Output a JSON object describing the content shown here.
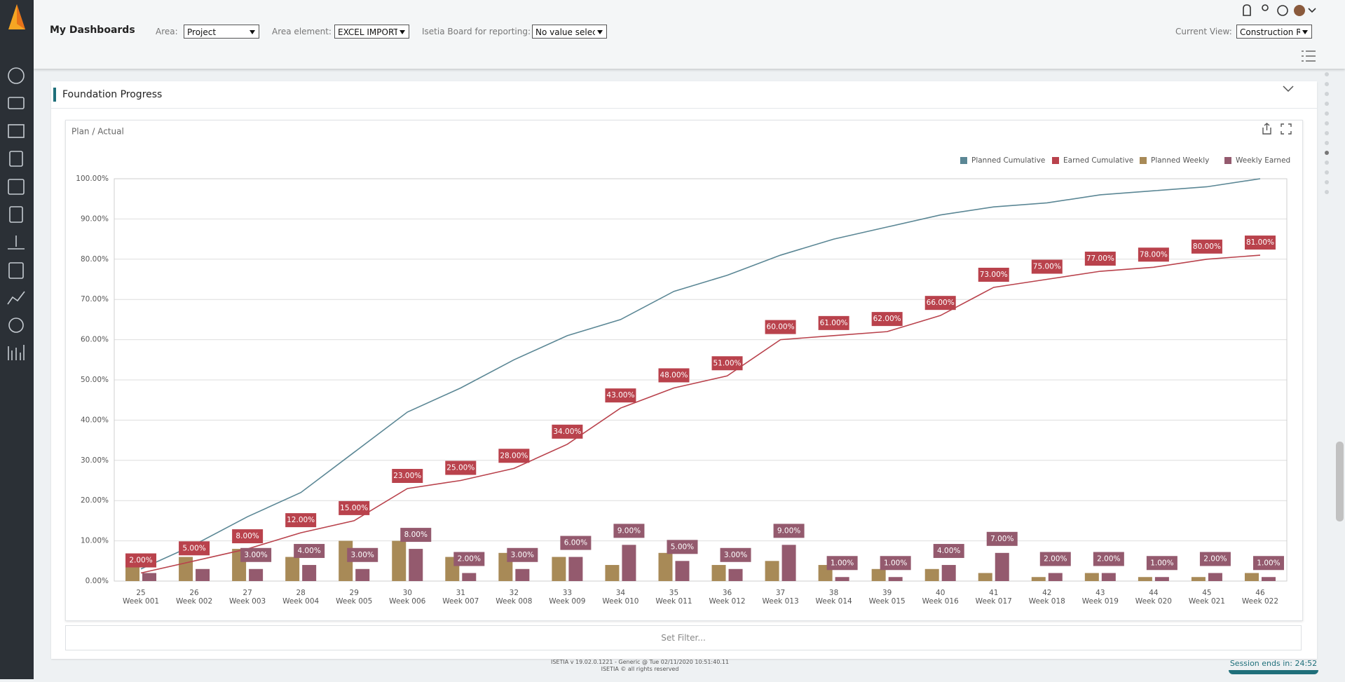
{
  "header": {
    "title": "My Dashboards",
    "filters": [
      {
        "label": "Area:",
        "value": "Project"
      },
      {
        "label": "Area element:",
        "value": "EXCEL IMPORT"
      },
      {
        "label": "Isetia Board for reporting:",
        "value": "No value selecte"
      }
    ],
    "current_view": {
      "label": "Current View:",
      "value": "Construction Re"
    }
  },
  "panel": {
    "title": "Foundation Progress",
    "filter": "Set Filter..."
  },
  "chart_data": {
    "type": "bar",
    "title": "Plan / Actual",
    "week_numbers": [
      25,
      26,
      27,
      28,
      29,
      30,
      31,
      32,
      33,
      34,
      35,
      36,
      37,
      38,
      39,
      40,
      41,
      42,
      43,
      44,
      45,
      46
    ],
    "categories": [
      "Week 001",
      "Week 002",
      "Week 003",
      "Week 004",
      "Week 005",
      "Week 006",
      "Week 007",
      "Week 008",
      "Week 009",
      "Week 010",
      "Week 011",
      "Week 012",
      "Week 013",
      "Week 014",
      "Week 015",
      "Week 016",
      "Week 017",
      "Week 018",
      "Week 019",
      "Week 020",
      "Week 021",
      "Week 022"
    ],
    "series": [
      {
        "name": "Planned Cumulative",
        "type": "line",
        "color": "#5b8795",
        "values": [
          3,
          9,
          16,
          22,
          32,
          42,
          48,
          55,
          61,
          65,
          72,
          76,
          81,
          85,
          88,
          91,
          93,
          94,
          96,
          97,
          98,
          100
        ]
      },
      {
        "name": "Earned Cumulative",
        "type": "line",
        "color": "#b9424c",
        "values": [
          2,
          5,
          8,
          12,
          15,
          23,
          25,
          28,
          34,
          43,
          48,
          51,
          60,
          61,
          62,
          66,
          73,
          75,
          77,
          78,
          80,
          81
        ],
        "value_labels": [
          "2.00%",
          "5.00%",
          "8.00%",
          "12.00%",
          "15.00%",
          "23.00%",
          "25.00%",
          "28.00%",
          "34.00%",
          "43.00%",
          "48.00%",
          "51.00%",
          "60.00%",
          "61.00%",
          "62.00%",
          "66.00%",
          "73.00%",
          "75.00%",
          "77.00%",
          "78.00%",
          "80.00%",
          "81.00%"
        ]
      },
      {
        "name": "Planned Weekly",
        "type": "bar",
        "color": "#a88a57",
        "values": [
          4,
          6,
          8,
          6,
          10,
          10,
          6,
          7,
          6,
          4,
          7,
          4,
          5,
          4,
          3,
          3,
          2,
          1,
          2,
          1,
          1,
          2
        ]
      },
      {
        "name": "Weekly Earned",
        "type": "bar",
        "color": "#945a6e",
        "values": [
          2,
          3,
          3,
          4,
          3,
          8,
          2,
          3,
          6,
          9,
          5,
          3,
          9,
          1,
          1,
          4,
          7,
          2,
          2,
          1,
          2,
          1
        ],
        "value_labels": [
          null,
          null,
          "3.00%",
          "4.00%",
          "3.00%",
          "8.00%",
          "2.00%",
          "3.00%",
          "6.00%",
          "9.00%",
          "5.00%",
          "3.00%",
          "9.00%",
          "1.00%",
          "1.00%",
          "4.00%",
          "7.00%",
          "2.00%",
          "2.00%",
          "1.00%",
          "2.00%",
          "1.00%"
        ]
      }
    ],
    "ylim": [
      0,
      100
    ],
    "yticks": [
      {
        "value": 0,
        "label": "0.00%"
      },
      {
        "value": 10,
        "label": "10.00%"
      },
      {
        "value": 20,
        "label": "20.00%"
      },
      {
        "value": 30,
        "label": "30.00%"
      },
      {
        "value": 40,
        "label": "40.00%"
      },
      {
        "value": 50,
        "label": "50.00%"
      },
      {
        "value": 60,
        "label": "60.00%"
      },
      {
        "value": 70,
        "label": "70.00%"
      },
      {
        "value": 80,
        "label": "80.00%"
      },
      {
        "value": 90,
        "label": "90.00%"
      },
      {
        "value": 100,
        "label": "100.00%"
      }
    ],
    "grid": true,
    "legend": "top-right"
  },
  "footer": {
    "version": "ISETIA v 19.02.0.1221 - Generic @ Tue 02/11/2020 10:51:40.11",
    "rights": "ISETIA © all rights reserved",
    "session": "Session ends in: 24:52"
  }
}
